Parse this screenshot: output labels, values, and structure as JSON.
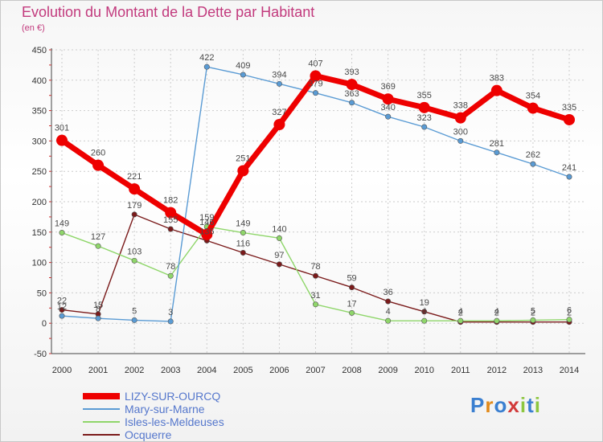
{
  "title": "Evolution du Montant de la Dette par Habitant",
  "unit_label": "(en €)",
  "logo_text": "Proxiti",
  "colors": {
    "title": "#c23a7d",
    "legend_text": "#5577cc",
    "grid": "#cccccc"
  },
  "chart_data": {
    "type": "line",
    "title": "Evolution du Montant de la Dette par Habitant",
    "ylabel": "(en €)",
    "x": [
      2000,
      2001,
      2002,
      2003,
      2004,
      2005,
      2006,
      2007,
      2008,
      2009,
      2010,
      2011,
      2012,
      2013,
      2014
    ],
    "ylim": [
      -50,
      450
    ],
    "yticks": [
      -50,
      0,
      50,
      100,
      150,
      200,
      250,
      300,
      350,
      400,
      450
    ],
    "grid": true,
    "legend_position": "bottom-left",
    "series": [
      {
        "name": "Ocquerre",
        "color": "#7a1a1a",
        "values": [
          22,
          15,
          179,
          155,
          136,
          116,
          97,
          78,
          59,
          36,
          19,
          2,
          2,
          2,
          2
        ]
      },
      {
        "name": "Isles-les-Meldeuses",
        "color": "#8fd66a",
        "values": [
          149,
          127,
          103,
          78,
          159,
          149,
          140,
          31,
          17,
          4,
          4,
          4,
          4,
          5,
          6
        ]
      },
      {
        "name": "Mary-sur-Marne",
        "color": "#5a9bd4",
        "values": [
          12,
          8,
          5,
          3,
          422,
          409,
          394,
          379,
          363,
          340,
          323,
          300,
          281,
          262,
          241
        ]
      },
      {
        "name": "LIZY-SUR-OURCQ",
        "color": "#ee0000",
        "values": [
          301,
          260,
          221,
          182,
          146,
          251,
          327,
          407,
          393,
          369,
          355,
          338,
          383,
          354,
          335
        ]
      }
    ],
    "legend_order": [
      "LIZY-SUR-OURCQ",
      "Mary-sur-Marne",
      "Isles-les-Meldeuses",
      "Ocquerre"
    ]
  }
}
